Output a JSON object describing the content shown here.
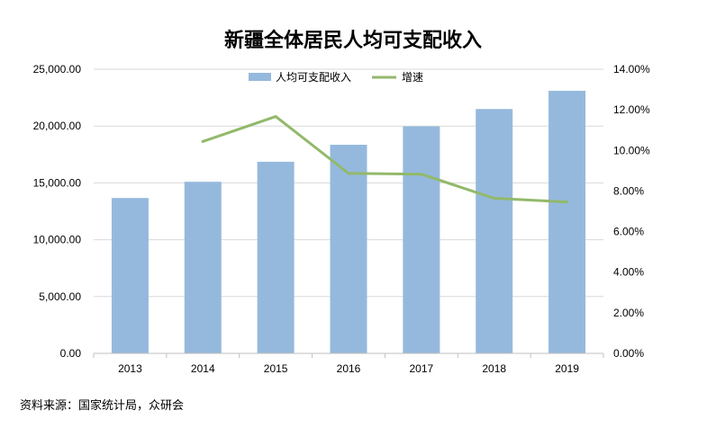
{
  "chart_data": {
    "type": "bar",
    "title": "新疆全体居民人均可支配收入",
    "categories": [
      "2013",
      "2014",
      "2015",
      "2016",
      "2017",
      "2018",
      "2019"
    ],
    "series": [
      {
        "name": "人均可支配收入",
        "kind": "bar",
        "axis": "left",
        "color": "#95B9DD",
        "values": [
          13670,
          15097,
          16859,
          18355,
          19975,
          21500,
          23103
        ]
      },
      {
        "name": "增速",
        "kind": "line",
        "axis": "right",
        "color": "#92B96A",
        "values": [
          null,
          10.44,
          11.67,
          8.87,
          8.83,
          7.64,
          7.46
        ]
      }
    ],
    "y_left": {
      "min": 0,
      "max": 25000,
      "ticks": [
        "0.00",
        "5,000.00",
        "10,000.00",
        "15,000.00",
        "20,000.00",
        "25,000.00"
      ]
    },
    "y_right": {
      "min": 0,
      "max": 14,
      "unit": "%",
      "ticks": [
        "0.00%",
        "2.00%",
        "4.00%",
        "6.00%",
        "8.00%",
        "10.00%",
        "12.00%",
        "14.00%"
      ]
    },
    "grid": true,
    "legend_position": "top-center"
  },
  "footer": {
    "source": "资料来源：国家统计局，众研会"
  }
}
